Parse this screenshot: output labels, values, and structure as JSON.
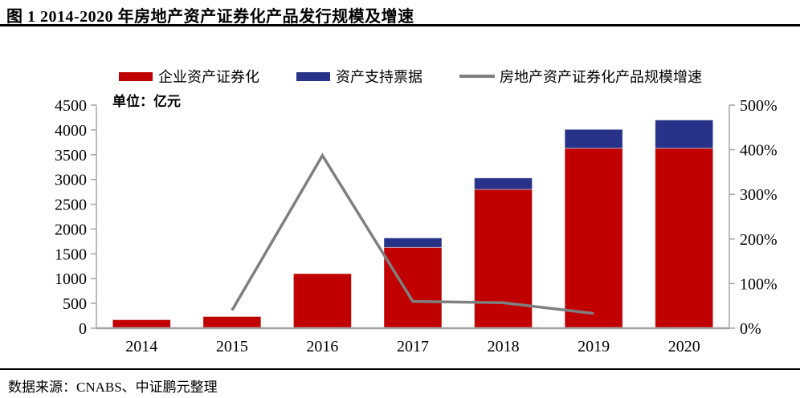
{
  "header": {
    "title": "图 1 2014-2020 年房地产资产证券化产品发行规模及增速"
  },
  "footer": {
    "source": "数据来源：CNABS、中证鹏元整理"
  },
  "chart_data": {
    "type": "bar+line",
    "title": "2014-2020 年房地产资产证券化产品发行规模及增速",
    "unit_label": "单位：亿元",
    "categories": [
      "2014",
      "2015",
      "2016",
      "2017",
      "2018",
      "2019",
      "2020"
    ],
    "series": [
      {
        "name": "企业资产证券化",
        "type": "bar",
        "stack": true,
        "color": "#C00000",
        "values": [
          170,
          235,
          1100,
          1630,
          2800,
          3630,
          3630
        ]
      },
      {
        "name": "资产支持票据",
        "type": "bar",
        "stack": true,
        "color": "#283288",
        "values": [
          0,
          0,
          0,
          190,
          230,
          380,
          570
        ]
      },
      {
        "name": "房地产资产证券化产品规模增速",
        "type": "line",
        "color": "#7F7F7F",
        "unit": "%",
        "values": [
          null,
          40,
          387,
          60,
          57,
          33,
          null
        ]
      }
    ],
    "left_axis": {
      "min": 0,
      "max": 4500,
      "step": 500
    },
    "right_axis": {
      "min": 0,
      "max": 500,
      "step": 100,
      "suffix": "%"
    },
    "legend_position": "top",
    "grid": false,
    "axis_color": "#A6A6A6"
  }
}
